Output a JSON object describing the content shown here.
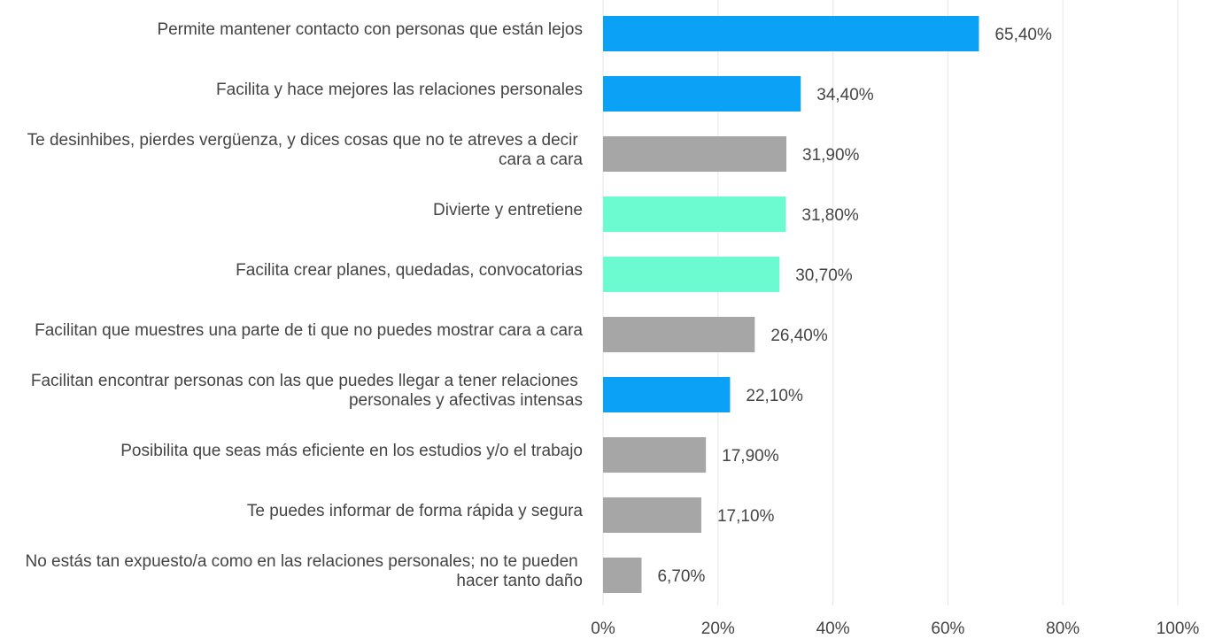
{
  "chart_data": {
    "type": "barh",
    "categories": [
      "Permite mantener contacto con personas que están lejos",
      "Facilita y hace mejores las relaciones personales",
      "Te desinhibes, pierdes vergüenza, y dices cosas que no te atreves a decir cara a cara",
      "Divierte y entretiene",
      "Facilita crear planes, quedadas, convocatorias",
      "Facilitan que muestres una parte de ti que no puedes mostrar cara a cara",
      "Facilitan encontrar personas con las que puedes llegar a tener relaciones personales y afectivas intensas",
      "Posibilita que seas más eficiente en los estudios y/o el trabajo",
      "Te puedes informar de forma rápida y segura",
      "No estás tan expuesto/a como en las relaciones personales; no te pueden hacer tanto daño"
    ],
    "values": [
      65.4,
      34.4,
      31.9,
      31.8,
      30.7,
      26.4,
      22.1,
      17.9,
      17.1,
      6.7
    ],
    "value_labels": [
      "65,40%",
      "34,40%",
      "31,90%",
      "31,80%",
      "30,70%",
      "26,40%",
      "22,10%",
      "17,90%",
      "17,10%",
      "6,70%"
    ],
    "colors": [
      "#0aa1f7",
      "#0aa1f7",
      "#a6a6a6",
      "#6cfbd1",
      "#6cfbd1",
      "#a6a6a6",
      "#0aa1f7",
      "#a6a6a6",
      "#a6a6a6",
      "#a6a6a6"
    ],
    "xlim": [
      0,
      100
    ],
    "xticks": [
      {
        "value": 0,
        "label": "0%"
      },
      {
        "value": 20,
        "label": "20%"
      },
      {
        "value": 40,
        "label": "40%"
      },
      {
        "value": 60,
        "label": "60%"
      },
      {
        "value": 80,
        "label": "80%"
      },
      {
        "value": 100,
        "label": "100%"
      }
    ],
    "grid": true
  }
}
